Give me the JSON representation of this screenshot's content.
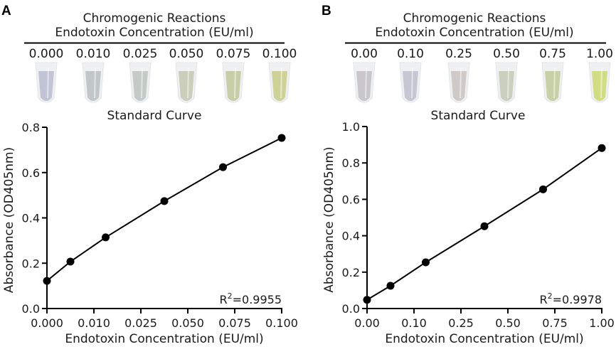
{
  "chart_data": [
    {
      "panel_label": "A",
      "type": "line",
      "header": {
        "line1": "Chromogenic Reactions",
        "line2": "Endotoxin Concentration (EU/ml)",
        "concentrations": [
          "0.000",
          "0.010",
          "0.025",
          "0.050",
          "0.075",
          "0.100"
        ],
        "tube_colors": [
          "#b8bccf",
          "#b9c0c0",
          "#bcc3bd",
          "#c3c8b0",
          "#bfc89a",
          "#c9cc86"
        ]
      },
      "title": "Standard Curve",
      "xlabel": "Endotoxin Concentration (EU/ml)",
      "ylabel": "Absorbance (OD405nm)",
      "x": [
        0.0,
        0.01,
        0.025,
        0.05,
        0.075,
        0.1
      ],
      "y": [
        0.122,
        0.207,
        0.314,
        0.474,
        0.624,
        0.753
      ],
      "xlim": [
        0,
        0.1
      ],
      "ylim": [
        0,
        0.8
      ],
      "xtick_labels": [
        "0.000",
        "0.010",
        "0.025",
        "0.050",
        "0.075",
        "0.100"
      ],
      "yticks": [
        0.0,
        0.2,
        0.4,
        0.6,
        0.8
      ],
      "ytick_labels": [
        "0.0",
        "0.2",
        "0.4",
        "0.6",
        "0.8"
      ],
      "annotation": {
        "prefix": "R",
        "sup": "2",
        "value": "=0.9955"
      },
      "grid": false,
      "legend": "none"
    },
    {
      "panel_label": "B",
      "type": "line",
      "header": {
        "line1": "Chromogenic Reactions",
        "line2": "Endotoxin Concentration (EU/ml)",
        "concentrations": [
          "0.00",
          "0.10",
          "0.25",
          "0.50",
          "0.75",
          "1.00"
        ],
        "tube_colors": [
          "#c2bfc6",
          "#c0bfcf",
          "#c9c3c0",
          "#c3cab5",
          "#bfcb98",
          "#cbd96e"
        ]
      },
      "title": "Standard Curve",
      "xlabel": "Endotoxin Concentration (EU/ml)",
      "ylabel": "Absorbance (OD405nm)",
      "x": [
        0.0,
        0.1,
        0.25,
        0.5,
        0.75,
        1.0
      ],
      "y": [
        0.048,
        0.125,
        0.254,
        0.452,
        0.655,
        0.882
      ],
      "xlim": [
        0,
        1.0
      ],
      "ylim": [
        0,
        1.0
      ],
      "xtick_labels": [
        "0.00",
        "0.10",
        "0.25",
        "0.50",
        "0.75",
        "1.00"
      ],
      "yticks": [
        0.0,
        0.2,
        0.4,
        0.6,
        0.8,
        1.0
      ],
      "ytick_labels": [
        "0.0",
        "0.2",
        "0.4",
        "0.6",
        "0.8",
        "1.0"
      ],
      "annotation": {
        "prefix": "R",
        "sup": "2",
        "value": "=0.9978"
      },
      "grid": false,
      "legend": "none"
    }
  ]
}
